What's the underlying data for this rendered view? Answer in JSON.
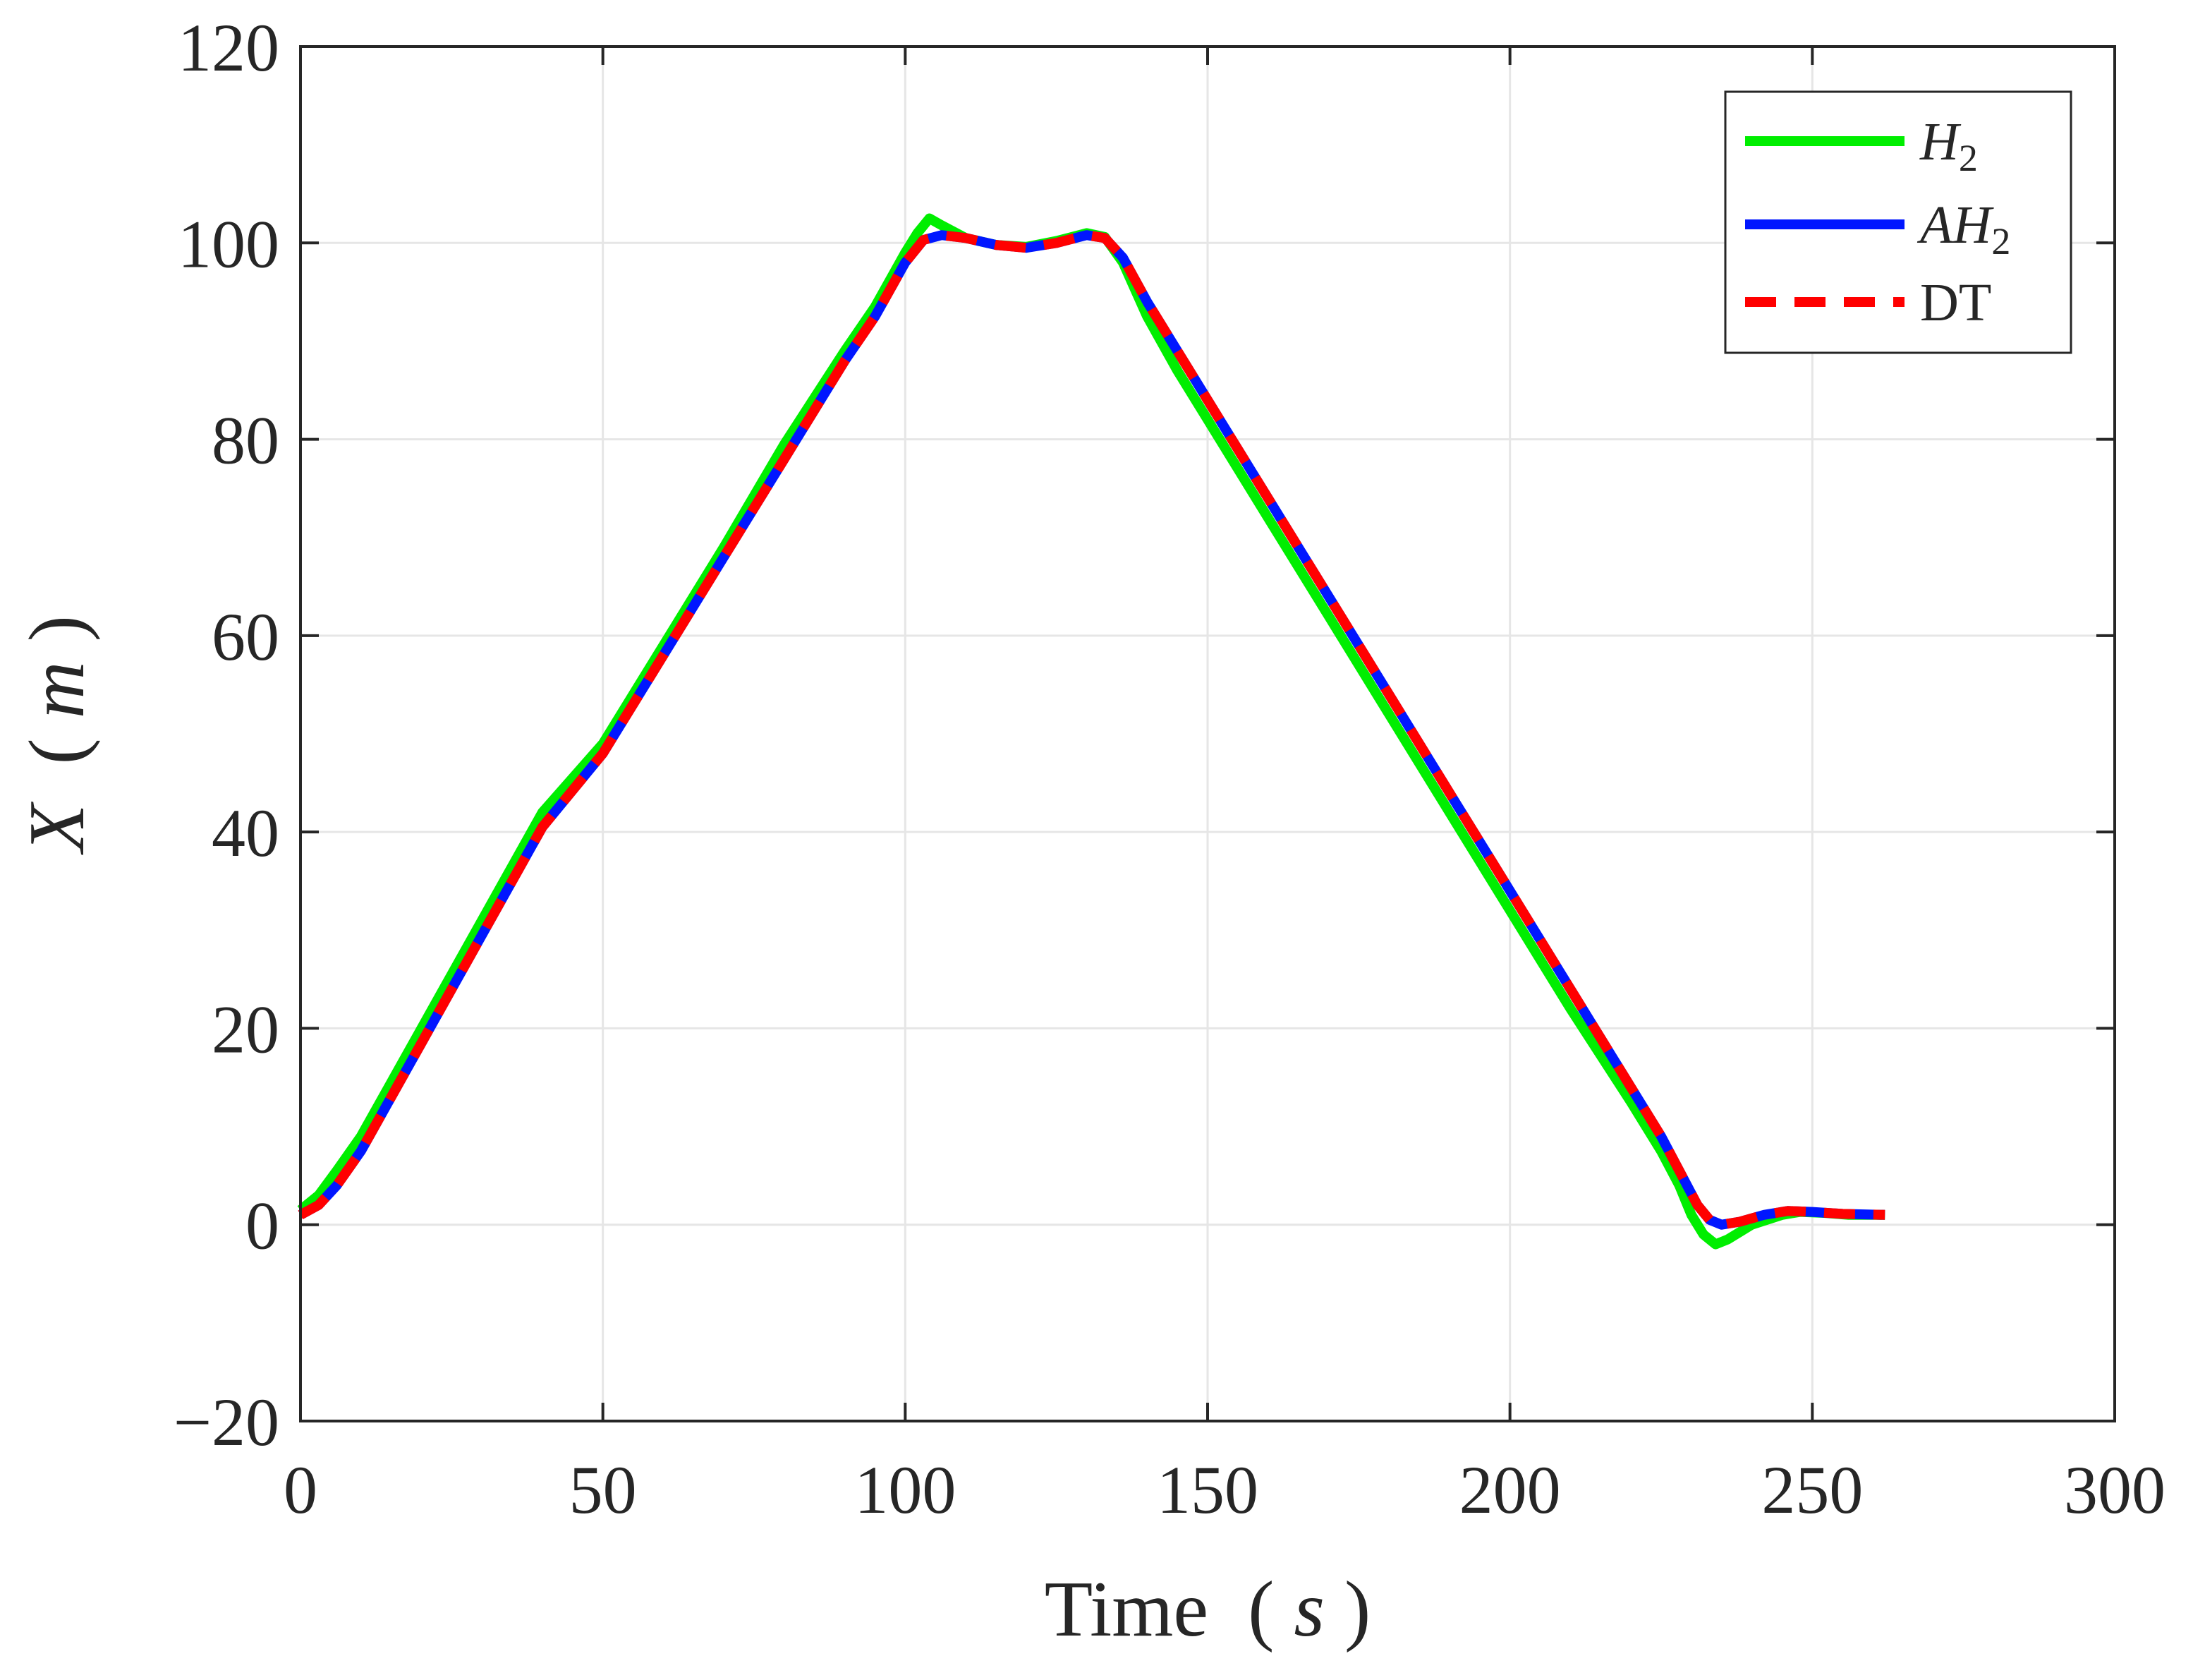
{
  "chart_data": {
    "type": "line",
    "title": "",
    "xlabel": {
      "text": "Time",
      "unit": "s",
      "open_paren": "(",
      "close_paren": ")"
    },
    "ylabel": {
      "text": "X",
      "unit": "m",
      "open_paren": "(",
      "close_paren": ")"
    },
    "xlim": [
      0,
      300
    ],
    "ylim": [
      -20,
      120
    ],
    "xticks": [
      0,
      50,
      100,
      150,
      200,
      250,
      300
    ],
    "yticks": [
      -20,
      0,
      20,
      40,
      60,
      80,
      100,
      120
    ],
    "xtick_labels": [
      "0",
      "50",
      "100",
      "150",
      "200",
      "250",
      "300"
    ],
    "ytick_labels": [
      "−20",
      "0",
      "20",
      "40",
      "60",
      "80",
      "100",
      "120"
    ],
    "grid": true,
    "legend_position": "top-right",
    "series": [
      {
        "name": "H",
        "subscript": "2",
        "italic": true,
        "color": "#00ee00",
        "style": "solid",
        "points": [
          [
            0,
            1.5
          ],
          [
            3,
            3
          ],
          [
            6,
            5.5
          ],
          [
            10,
            9
          ],
          [
            15,
            14.5
          ],
          [
            20,
            20
          ],
          [
            30,
            31
          ],
          [
            40,
            42
          ],
          [
            50,
            49
          ],
          [
            60,
            59
          ],
          [
            70,
            69
          ],
          [
            80,
            79.5
          ],
          [
            90,
            89
          ],
          [
            95,
            93.5
          ],
          [
            100,
            99
          ],
          [
            102,
            101
          ],
          [
            104,
            102.5
          ],
          [
            106,
            101.8
          ],
          [
            110,
            100.5
          ],
          [
            115,
            99.8
          ],
          [
            120,
            99.6
          ],
          [
            125,
            100.2
          ],
          [
            130,
            101
          ],
          [
            133,
            100.6
          ],
          [
            136,
            98
          ],
          [
            140,
            92.5
          ],
          [
            145,
            87
          ],
          [
            150,
            82
          ],
          [
            160,
            72
          ],
          [
            170,
            62
          ],
          [
            180,
            52
          ],
          [
            190,
            42
          ],
          [
            200,
            32
          ],
          [
            210,
            22
          ],
          [
            220,
            12.5
          ],
          [
            225,
            7.5
          ],
          [
            228,
            4
          ],
          [
            230,
            1
          ],
          [
            232,
            -1
          ],
          [
            234,
            -2
          ],
          [
            236,
            -1.5
          ],
          [
            240,
            0
          ],
          [
            245,
            1
          ],
          [
            248,
            1.3
          ],
          [
            252,
            1.2
          ],
          [
            256,
            1
          ],
          [
            262,
            1
          ]
        ]
      },
      {
        "name": "AH",
        "subscript": "2",
        "italic": true,
        "color": "#0016ff",
        "style": "solid",
        "points": [
          [
            0,
            1
          ],
          [
            3,
            2
          ],
          [
            6,
            4
          ],
          [
            10,
            7.5
          ],
          [
            15,
            13
          ],
          [
            20,
            18.5
          ],
          [
            30,
            29.5
          ],
          [
            40,
            40.5
          ],
          [
            50,
            48
          ],
          [
            60,
            58
          ],
          [
            70,
            68
          ],
          [
            80,
            78
          ],
          [
            90,
            88
          ],
          [
            95,
            92.5
          ],
          [
            100,
            98
          ],
          [
            103,
            100.3
          ],
          [
            106,
            100.8
          ],
          [
            110,
            100.5
          ],
          [
            115,
            99.8
          ],
          [
            120,
            99.5
          ],
          [
            125,
            100
          ],
          [
            130,
            100.8
          ],
          [
            133,
            100.5
          ],
          [
            136,
            98.5
          ],
          [
            140,
            94
          ],
          [
            145,
            89
          ],
          [
            150,
            84
          ],
          [
            160,
            74
          ],
          [
            170,
            64
          ],
          [
            180,
            54
          ],
          [
            190,
            44
          ],
          [
            200,
            34
          ],
          [
            210,
            24
          ],
          [
            220,
            14
          ],
          [
            225,
            9
          ],
          [
            228,
            5.5
          ],
          [
            231,
            2
          ],
          [
            233,
            0.5
          ],
          [
            235,
            0
          ],
          [
            238,
            0.3
          ],
          [
            242,
            1
          ],
          [
            246,
            1.4
          ],
          [
            250,
            1.3
          ],
          [
            255,
            1.1
          ],
          [
            262,
            1
          ]
        ]
      },
      {
        "name": "DT",
        "subscript": "",
        "italic": false,
        "color": "#ff0000",
        "style": "dashed",
        "points": [
          [
            0,
            1
          ],
          [
            3,
            2
          ],
          [
            6,
            4
          ],
          [
            10,
            7.5
          ],
          [
            15,
            13
          ],
          [
            20,
            18.5
          ],
          [
            30,
            29.5
          ],
          [
            40,
            40.5
          ],
          [
            50,
            48
          ],
          [
            60,
            58
          ],
          [
            70,
            68
          ],
          [
            80,
            78
          ],
          [
            90,
            88
          ],
          [
            95,
            92.5
          ],
          [
            100,
            98
          ],
          [
            103,
            100.3
          ],
          [
            106,
            100.8
          ],
          [
            110,
            100.5
          ],
          [
            115,
            99.8
          ],
          [
            120,
            99.5
          ],
          [
            125,
            100
          ],
          [
            130,
            100.8
          ],
          [
            133,
            100.5
          ],
          [
            136,
            98.5
          ],
          [
            140,
            94
          ],
          [
            145,
            89
          ],
          [
            150,
            84
          ],
          [
            160,
            74
          ],
          [
            170,
            64
          ],
          [
            180,
            54
          ],
          [
            190,
            44
          ],
          [
            200,
            34
          ],
          [
            210,
            24
          ],
          [
            220,
            14
          ],
          [
            225,
            9
          ],
          [
            228,
            5.5
          ],
          [
            231,
            2
          ],
          [
            233,
            0.5
          ],
          [
            235,
            0
          ],
          [
            238,
            0.3
          ],
          [
            242,
            1
          ],
          [
            246,
            1.4
          ],
          [
            250,
            1.3
          ],
          [
            255,
            1.1
          ],
          [
            262,
            1
          ]
        ]
      }
    ]
  }
}
